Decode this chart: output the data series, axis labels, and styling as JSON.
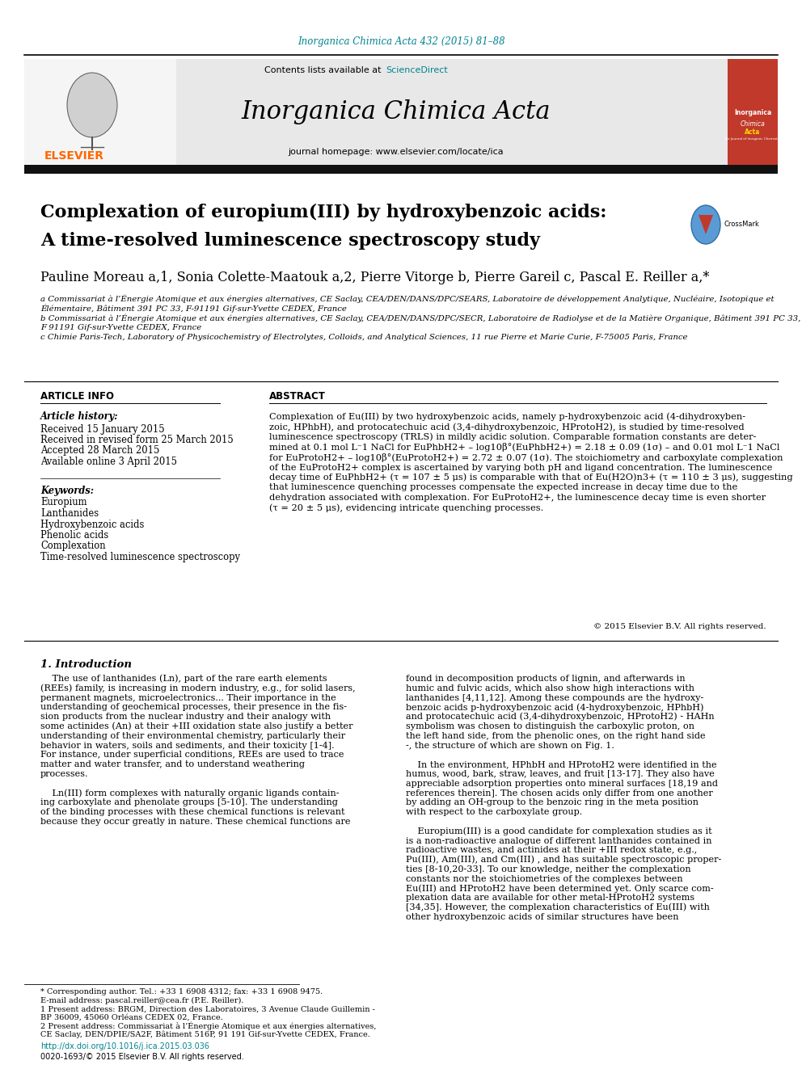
{
  "page_bg": "#ffffff",
  "header_url_color": "#00838F",
  "header_url_text": "Inorganica Chimica Acta 432 (2015) 81–88",
  "journal_banner_bg": "#e8e8e8",
  "journal_name": "Inorganica Chimica Acta",
  "journal_homepage": "journal homepage: www.elsevier.com/locate/ica",
  "contents_text": "Contents lists available at ",
  "science_direct_text": "ScienceDirect",
  "science_direct_color": "#00838F",
  "elsevier_color": "#FF6600",
  "elsevier_text": "ELSEVIER",
  "article_title_line1": "Complexation of europium(III) by hydroxybenzoic acids:",
  "article_title_line2": "A time-resolved luminescence spectroscopy study",
  "authors_text": "Pauline Moreau a,1, Sonia Colette-Maatouk a,2, Pierre Vitorge b, Pierre Gareil c, Pascal E. Reiller a,*",
  "affiliation_a1": "a Commissariat à l’Énergie Atomique et aux énergies alternatives, CE Saclay, CEA/DEN/DANS/DPC/SEARS, Laboratoire de développement Analytique, Nucléaire, Isotopique et",
  "affiliation_a2": "Élémentaire, Bâtiment 391 PC 33, F-91191 Gif-sur-Yvette CEDEX, France",
  "affiliation_b1": "b Commissariat à l’Énergie Atomique et aux énergies alternatives, CE Saclay, CEA/DEN/DANS/DPC/SECR, Laboratoire de Radiolyse et de la Matière Organique, Bâtiment 391 PC 33,",
  "affiliation_b2": "F 91191 Gif-sur-Yvette CEDEX, France",
  "affiliation_c": "c Chimie Paris-Tech, Laboratory of Physicochemistry of Electrolytes, Colloids, and Analytical Sciences, 11 rue Pierre et Marie Curie, F-75005 Paris, France",
  "article_info_title": "ARTICLE INFO",
  "abstract_title": "ABSTRACT",
  "article_history_label": "Article history:",
  "received": "Received 15 January 2015",
  "revised": "Received in revised form 25 March 2015",
  "accepted": "Accepted 28 March 2015",
  "available": "Available online 3 April 2015",
  "keywords_label": "Keywords:",
  "keyword1": "Europium",
  "keyword2": "Lanthanides",
  "keyword3": "Hydroxybenzoic acids",
  "keyword4": "Phenolic acids",
  "keyword5": "Complexation",
  "keyword6": "Time-resolved luminescence spectroscopy",
  "abstract_line1": "Complexation of Eu(III) by two hydroxybenzoic acids, namely p-hydroxybenzoic acid (4-dihydroxyben-",
  "abstract_line2": "zoic, HPhbH), and protocatechuic acid (3,4-dihydroxybenzoic, HProtoH2), is studied by time-resolved",
  "abstract_line3": "luminescence spectroscopy (TRLS) in mildly acidic solution. Comparable formation constants are deter-",
  "abstract_line4": "mined at 0.1 mol L⁻1 NaCl for EuPhbH2+ – log10β°(EuPhbH2+) = 2.18 ± 0.09 (1σ) – and 0.01 mol L⁻1 NaCl",
  "abstract_line5": "for EuProtoH2+ – log10β°(EuProtoH2+) = 2.72 ± 0.07 (1σ). The stoichiometry and carboxylate complexation",
  "abstract_line6": "of the EuProtoH2+ complex is ascertained by varying both pH and ligand concentration. The luminescence",
  "abstract_line7": "decay time of EuPhbH2+ (τ = 107 ± 5 μs) is comparable with that of Eu(H2O)n3+ (τ = 110 ± 3 μs), suggesting",
  "abstract_line8": "that luminescence quenching processes compensate the expected increase in decay time due to the",
  "abstract_line9": "dehydration associated with complexation. For EuProtoH2+, the luminescence decay time is even shorter",
  "abstract_line10": "(τ = 20 ± 5 μs), evidencing intricate quenching processes.",
  "copyright": "© 2015 Elsevier B.V. All rights reserved.",
  "intro_heading": "1. Introduction",
  "intro_col1_lines": [
    "    The use of lanthanides (Ln), part of the rare earth elements",
    "(REEs) family, is increasing in modern industry, e.g., for solid lasers,",
    "permanent magnets, microelectronics... Their importance in the",
    "understanding of geochemical processes, their presence in the fis-",
    "sion products from the nuclear industry and their analogy with",
    "some actinides (An) at their +III oxidation state also justify a better",
    "understanding of their environmental chemistry, particularly their",
    "behavior in waters, soils and sediments, and their toxicity [1-4].",
    "For instance, under superficial conditions, REEs are used to trace",
    "matter and water transfer, and to understand weathering",
    "processes.",
    "",
    "    Ln(III) form complexes with naturally organic ligands contain-",
    "ing carboxylate and phenolate groups [5-10]. The understanding",
    "of the binding processes with these chemical functions is relevant",
    "because they occur greatly in nature. These chemical functions are"
  ],
  "intro_col2_lines": [
    "found in decomposition products of lignin, and afterwards in",
    "humic and fulvic acids, which also show high interactions with",
    "lanthanides [4,11,12]. Among these compounds are the hydroxy-",
    "benzoic acids p-hydroxybenzoic acid (4-hydroxybenzoic, HPhbH)",
    "and protocatechuic acid (3,4-dihydroxybenzoic, HProtoH2) - HAHn",
    "symbolism was chosen to distinguish the carboxylic proton, on",
    "the left hand side, from the phenolic ones, on the right hand side",
    "-, the structure of which are shown on Fig. 1.",
    "",
    "    In the environment, HPhbH and HProtoH2 were identified in the",
    "humus, wood, bark, straw, leaves, and fruit [13-17]. They also have",
    "appreciable adsorption properties onto mineral surfaces [18,19 and",
    "references therein]. The chosen acids only differ from one another",
    "by adding an OH-group to the benzoic ring in the meta position",
    "with respect to the carboxylate group.",
    "",
    "    Europium(III) is a good candidate for complexation studies as it",
    "is a non-radioactive analogue of different lanthanides contained in",
    "radioactive wastes, and actinides at their +III redox state, e.g.,",
    "Pu(III), Am(III), and Cm(III) , and has suitable spectroscopic proper-",
    "ties [8-10,20-33]. To our knowledge, neither the complexation",
    "constants nor the stoichiometries of the complexes between",
    "Eu(III) and HProtoH2 have been determined yet. Only scarce com-",
    "plexation data are available for other metal-HProtoH2 systems",
    "[34,35]. However, the complexation characteristics of Eu(III) with",
    "other hydroxybenzoic acids of similar structures have been"
  ],
  "footnote_star": "* Corresponding author. Tel.: +33 1 6908 4312; fax: +33 1 6908 9475.",
  "footnote_email": "E-mail address: pascal.reiller@cea.fr (P.E. Reiller).",
  "footnote_1a": "1 Present address: BRGM, Direction des Laboratoires, 3 Avenue Claude Guillemin -",
  "footnote_1b": "BP 36009, 45060 Orléans CEDEX 02, France.",
  "footnote_2a": "2 Present address: Commissariat à l’Énergie Atomique et aux énergies alternatives,",
  "footnote_2b": "CE Saclay, DEN/DPIE/SA2F, Bâtiment 516P, 91 191 Gif-sur-Yvette CEDEX, France.",
  "doi_text": "http://dx.doi.org/10.1016/j.ica.2015.03.036",
  "issn_text": "0020-1693/© 2015 Elsevier B.V. All rights reserved.",
  "journal_cover_bg": "#c0392b",
  "dark_bar_color": "#111111"
}
